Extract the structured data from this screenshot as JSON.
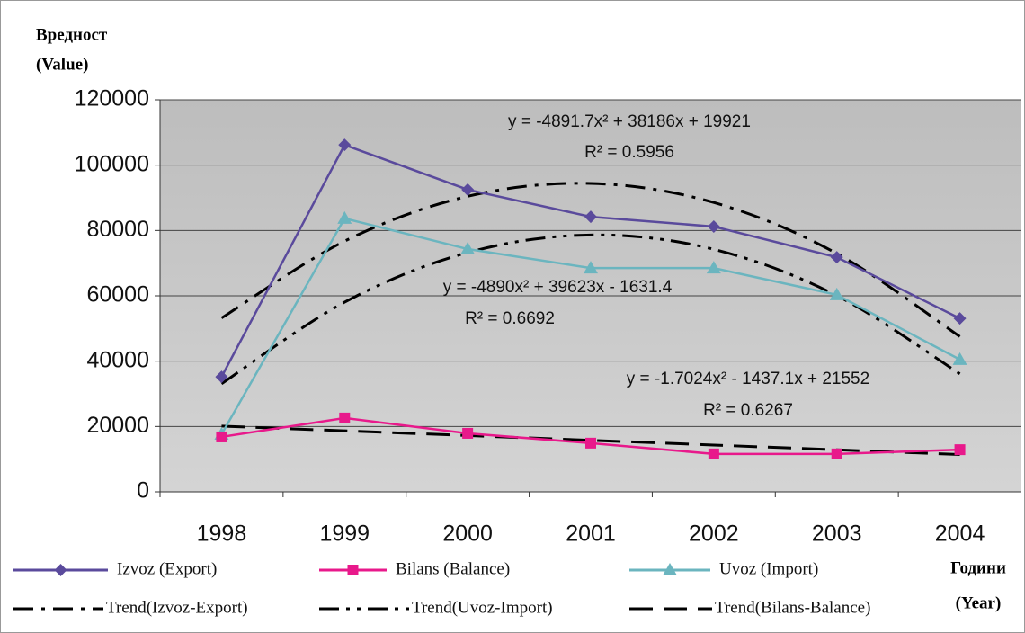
{
  "chart_data": {
    "type": "line",
    "y_label": [
      "Вредност",
      "(Value)"
    ],
    "x_label": [
      "Години",
      "(Year)"
    ],
    "categories": [
      "1998",
      "1999",
      "2000",
      "2001",
      "2002",
      "2003",
      "2004"
    ],
    "ylim": [
      0,
      120000
    ],
    "yticks": [
      0,
      20000,
      40000,
      60000,
      80000,
      100000,
      120000
    ],
    "grid": true,
    "series": [
      {
        "name": "Izvoz (Export)",
        "color": "#5a4a9c",
        "marker": "diamond",
        "values": [
          35200,
          106200,
          92500,
          84200,
          81200,
          71800,
          53100
        ]
      },
      {
        "name": "Bilans (Balance)",
        "color": "#e8198b",
        "marker": "square",
        "values": [
          16800,
          22600,
          17900,
          14900,
          11600,
          11600,
          12900
        ]
      },
      {
        "name": "Uvoz (Import)",
        "color": "#6bb5bf",
        "marker": "triangle",
        "values": [
          17600,
          83700,
          74300,
          68500,
          68500,
          60300,
          40500
        ]
      },
      {
        "name": "Trend(Izvoz-Export)",
        "color": "#000000",
        "dash": "dash-dot",
        "values": [
          53215,
          76726,
          90454,
          94398,
          88559,
          72936,
          47530
        ]
      },
      {
        "name": "Trend(Uvoz-Import)",
        "color": "#000000",
        "dash": "dash-dot-dot",
        "values": [
          33102,
          58055,
          73228,
          78621,
          74234,
          60067,
          36120
        ]
      },
      {
        "name": "Trend(Bilans-Balance)",
        "color": "#000000",
        "dash": "long-dash",
        "values": [
          20113,
          18671,
          17225,
          15776,
          14324,
          12868,
          11409
        ]
      }
    ],
    "annotations": [
      "y = -4891.7x² + 38186x + 19921",
      "R² = 0.5956",
      "y = -4890x² + 39623x - 1631.4",
      "R² = 0.6692",
      "y = -1.7024x² - 1437.1x + 21552",
      "R² = 0.6267"
    ]
  }
}
